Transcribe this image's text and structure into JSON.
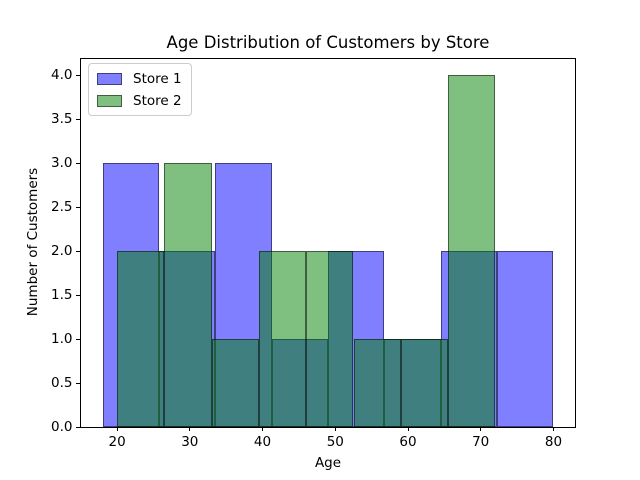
{
  "chart_data": {
    "type": "histogram",
    "title": "Age Distribution of Customers by Store",
    "xlabel": "Age",
    "ylabel": "Number of Customers",
    "xlim": [
      14.9,
      83.1
    ],
    "ylim": [
      0,
      4.2
    ],
    "grid": false,
    "legend_position": "upper-left",
    "background_color": "#ffffff",
    "spine_color": "#000000",
    "xticks": [
      {
        "value": 20,
        "label": "20"
      },
      {
        "value": 30,
        "label": "30"
      },
      {
        "value": 40,
        "label": "40"
      },
      {
        "value": 50,
        "label": "50"
      },
      {
        "value": 60,
        "label": "60"
      },
      {
        "value": 70,
        "label": "70"
      },
      {
        "value": 80,
        "label": "80"
      }
    ],
    "yticks": [
      {
        "value": 0.0,
        "label": "0.0"
      },
      {
        "value": 0.5,
        "label": "0.5"
      },
      {
        "value": 1.0,
        "label": "1.0"
      },
      {
        "value": 1.5,
        "label": "1.5"
      },
      {
        "value": 2.0,
        "label": "2.0"
      },
      {
        "value": 2.5,
        "label": "2.5"
      },
      {
        "value": 3.0,
        "label": "3.0"
      },
      {
        "value": 3.5,
        "label": "3.5"
      },
      {
        "value": 4.0,
        "label": "4.0"
      }
    ],
    "series": [
      {
        "name": "Store 1",
        "base_color": "#0000ff",
        "fill": "rgba(0,0,255,0.5)",
        "edge": "rgba(0,0,0,0.5)",
        "bin_edges": [
          18,
          25.75,
          33.5,
          41.25,
          49,
          56.75,
          64.5,
          72.25,
          80
        ],
        "counts": [
          3,
          2,
          3,
          1,
          2,
          1,
          2,
          2
        ]
      },
      {
        "name": "Store 2",
        "base_color": "#008000",
        "fill": "rgba(0,128,0,0.5)",
        "edge": "rgba(0,0,0,0.5)",
        "bin_edges": [
          20,
          26.5,
          33,
          39.5,
          46,
          52.5,
          59,
          65.5,
          72
        ],
        "counts": [
          2,
          3,
          1,
          2,
          2,
          1,
          1,
          4
        ]
      }
    ]
  }
}
